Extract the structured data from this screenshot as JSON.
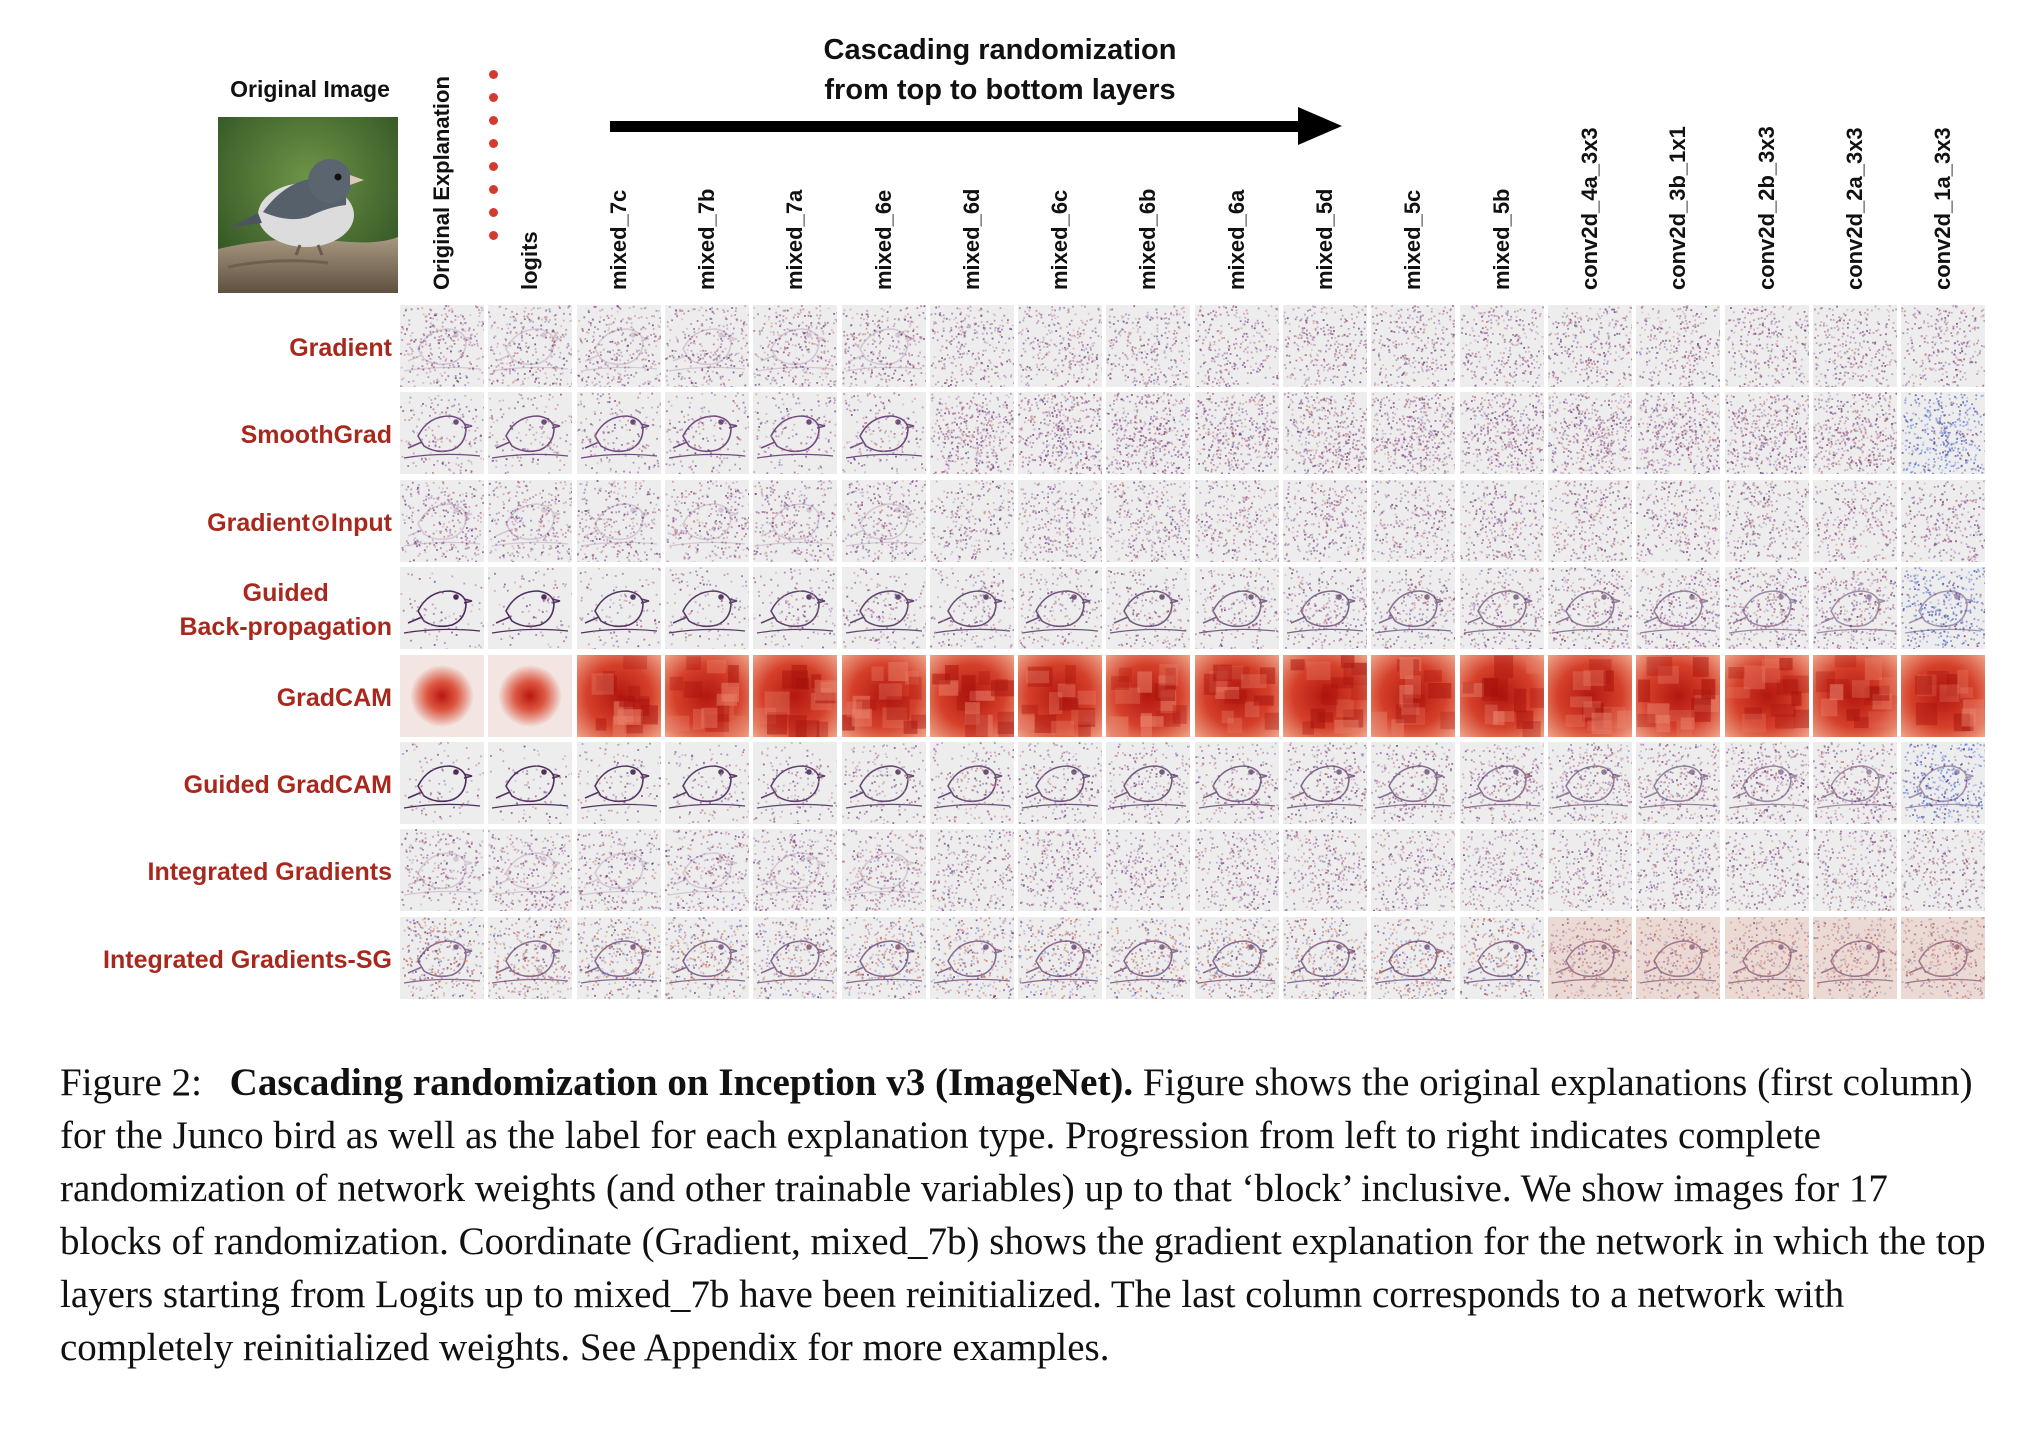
{
  "original_image_label": "Original Image",
  "arrow_title_line1": "Cascading randomization",
  "arrow_title_line2": "from top to bottom layers",
  "first_column_label": "Original Explanation",
  "layer_columns": [
    "logits",
    "mixed_7c",
    "mixed_7b",
    "mixed_7a",
    "mixed_6e",
    "mixed_6d",
    "mixed_6c",
    "mixed_6b",
    "mixed_6a",
    "mixed_5d",
    "mixed_5c",
    "mixed_5b",
    "conv2d_4a_3x3",
    "conv2d_3b_1x1",
    "conv2d_2b_3x3",
    "conv2d_2a_3x3",
    "conv2d_1a_3x3"
  ],
  "rows": [
    {
      "label_lines": [
        "Gradient"
      ],
      "style": "noise"
    },
    {
      "label_lines": [
        "SmoothGrad"
      ],
      "style": "bird-noise"
    },
    {
      "label_lines": [
        "Gradient⊙Input"
      ],
      "style": "noise"
    },
    {
      "label_lines": [
        "Guided",
        "Back-propagation"
      ],
      "style": "outline"
    },
    {
      "label_lines": [
        "GradCAM"
      ],
      "style": "heatmap"
    },
    {
      "label_lines": [
        "Guided GradCAM"
      ],
      "style": "outline"
    },
    {
      "label_lines": [
        "Integrated Gradients"
      ],
      "style": "noise"
    },
    {
      "label_lines": [
        "Integrated Gradients-SG"
      ],
      "style": "outline-noise"
    }
  ],
  "caption": {
    "figure_number": "Figure 2:",
    "title": "Cascading randomization on Inception v3 (ImageNet).",
    "body": "Figure shows the original explanations (first column) for the Junco bird as well as the label for each explanation type. Progression from left to right indicates complete randomization of network weights (and other trainable variables) up to that ‘block’ inclusive. We show images for 17 blocks of randomization. Coordinate (Gradient, mixed_7b) shows the gradient explanation for the network in which the top layers starting from Logits up to mixed_7b have been reinitialized. The last column corresponds to a network with completely reinitialized weights. See Appendix for more examples."
  },
  "colors": {
    "label_red": "#a8281d",
    "dot_red": "#d43a2e",
    "heat_red": "#c8281c",
    "saliency_purple": "#6a3a7a",
    "saliency_blue": "#3b5bc9"
  }
}
